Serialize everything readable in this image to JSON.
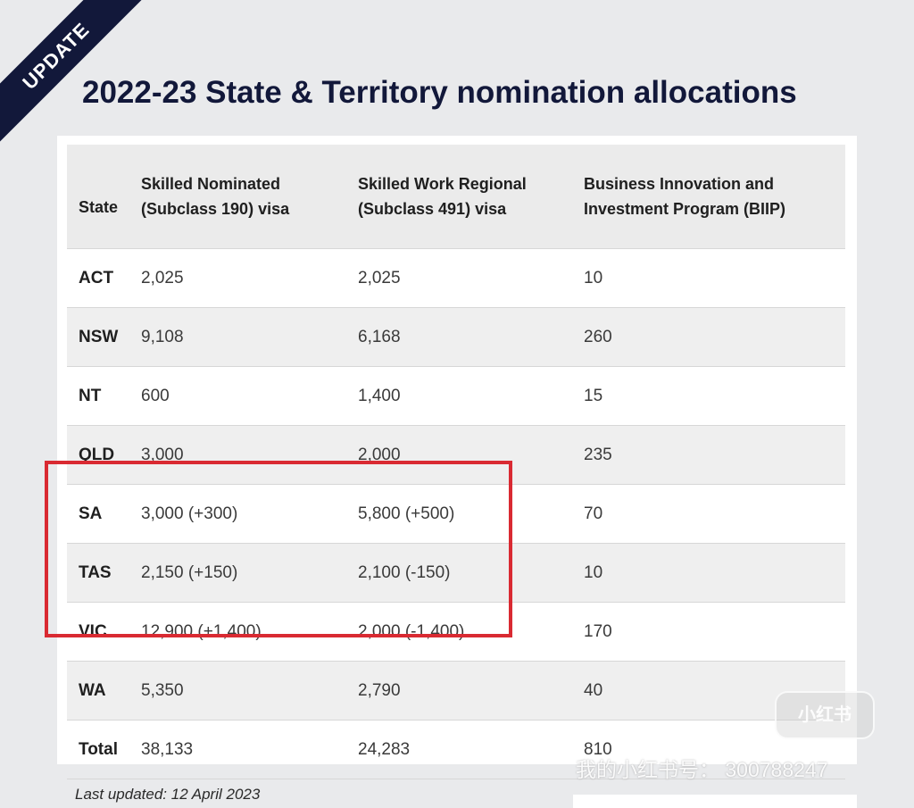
{
  "ribbon": {
    "label": "UPDATE"
  },
  "title": "2022-23 State & Territory nomination allocations",
  "table": {
    "headers": [
      "State",
      "Skilled Nominated\n(Subclass 190) visa",
      "Skilled Work Regional\n(Subclass 491) visa",
      "Business Innovation and\nInvestment Program (BIIP)"
    ],
    "rows": [
      [
        "ACT",
        "2,025",
        "2,025",
        "10"
      ],
      [
        "NSW",
        "9,108",
        "6,168",
        "260"
      ],
      [
        "NT",
        "600",
        "1,400",
        "15"
      ],
      [
        "QLD",
        "3,000",
        "2,000",
        "235"
      ],
      [
        "SA",
        "3,000 (+300)",
        "5,800 (+500)",
        "70"
      ],
      [
        "TAS",
        "2,150 (+150)",
        "2,100 (-150)",
        "10"
      ],
      [
        "VIC",
        "12,900 (+1,400)",
        "2,000 (-1,400)",
        "170"
      ],
      [
        "WA",
        "5,350",
        "2,790",
        "40"
      ],
      [
        "Total",
        "38,133",
        "24,283",
        "810"
      ]
    ]
  },
  "footnote": "Last updated: 12 April 2023",
  "watermark": {
    "logo": "小红书",
    "text": "我的小红书号： 300788247"
  },
  "colors": {
    "navy": "#12183a",
    "highlight": "#d92a32"
  }
}
